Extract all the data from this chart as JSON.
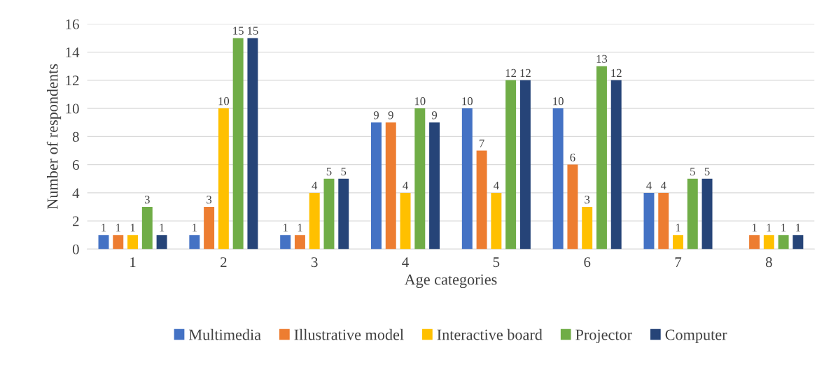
{
  "chart_data": {
    "type": "bar",
    "xlabel": "Age categories",
    "ylabel": "Number of respondents",
    "categories": [
      "1",
      "2",
      "3",
      "4",
      "5",
      "6",
      "7",
      "8"
    ],
    "series": [
      {
        "name": "Multimedia",
        "color": "#4472c4",
        "values": [
          1,
          1,
          1,
          9,
          10,
          10,
          4,
          null
        ]
      },
      {
        "name": "Illustrative model",
        "color": "#ed7d31",
        "values": [
          1,
          3,
          1,
          9,
          7,
          6,
          4,
          1
        ]
      },
      {
        "name": "Interactive board",
        "color": "#ffc000",
        "values": [
          1,
          10,
          4,
          4,
          4,
          3,
          1,
          1
        ]
      },
      {
        "name": "Projector",
        "color": "#70ad47",
        "values": [
          3,
          15,
          5,
          10,
          12,
          13,
          5,
          1
        ]
      },
      {
        "name": "Computer",
        "color": "#264478",
        "values": [
          1,
          15,
          5,
          9,
          12,
          12,
          5,
          1
        ]
      }
    ],
    "ylim": [
      0,
      16
    ],
    "yticks": [
      0,
      2,
      4,
      6,
      8,
      10,
      12,
      14,
      16
    ],
    "grid": "y",
    "legend": "bottom",
    "data_labels": true
  }
}
